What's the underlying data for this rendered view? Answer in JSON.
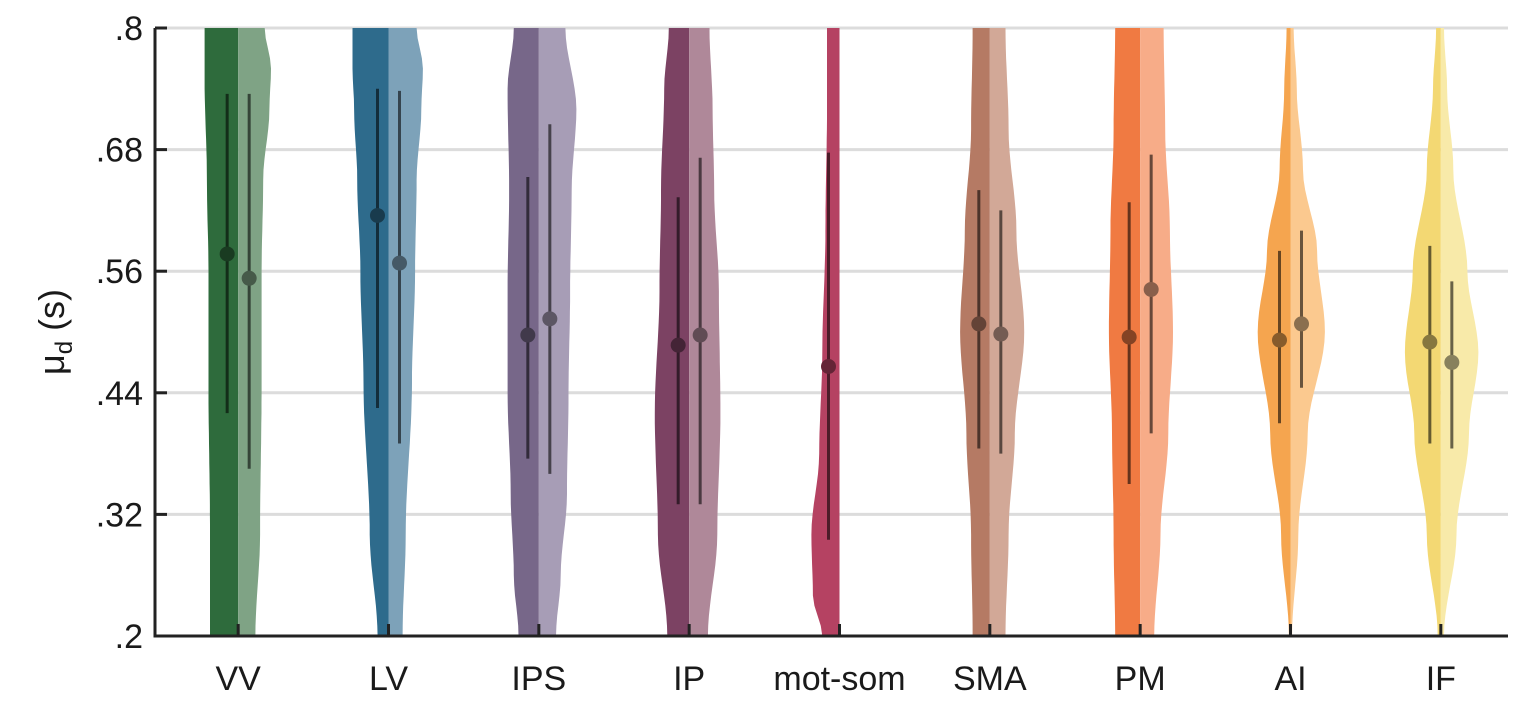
{
  "chart_data": {
    "type": "violin",
    "ylabel": "μ",
    "ylabel_sub": "d",
    "ylabel_unit": " (s)",
    "ylim": [
      0.2,
      0.8
    ],
    "yticks": [
      0.2,
      0.32,
      0.44,
      0.56,
      0.68,
      0.8
    ],
    "ytick_labels": [
      ".2",
      ".32",
      ".44",
      ".56",
      ".68",
      ".8"
    ],
    "grid": true,
    "categories": [
      "VV",
      "LV",
      "IPS",
      "IP",
      "mot-som",
      "SMA",
      "PM",
      "AI",
      "IF"
    ],
    "groups": [
      {
        "label": "VV",
        "left": {
          "color": "#2e6b3c",
          "median": 0.577,
          "low": 0.42,
          "high": 0.735,
          "violin": [
            [
              0.2,
              0.36
            ],
            [
              0.3,
              0.36
            ],
            [
              0.45,
              0.38
            ],
            [
              0.56,
              0.38
            ],
            [
              0.65,
              0.4
            ],
            [
              0.75,
              0.43
            ],
            [
              0.8,
              0.43
            ]
          ]
        },
        "right": {
          "color": "#7fa385",
          "median": 0.553,
          "low": 0.365,
          "high": 0.735,
          "violin": [
            [
              0.2,
              0.22
            ],
            [
              0.3,
              0.28
            ],
            [
              0.45,
              0.3
            ],
            [
              0.56,
              0.3
            ],
            [
              0.65,
              0.32
            ],
            [
              0.72,
              0.4
            ],
            [
              0.76,
              0.42
            ],
            [
              0.8,
              0.34
            ]
          ]
        }
      },
      {
        "label": "LV",
        "left": {
          "color": "#2e6b8c",
          "median": 0.615,
          "low": 0.425,
          "high": 0.74,
          "violin": [
            [
              0.2,
              0.14
            ],
            [
              0.3,
              0.24
            ],
            [
              0.45,
              0.32
            ],
            [
              0.56,
              0.36
            ],
            [
              0.65,
              0.4
            ],
            [
              0.72,
              0.44
            ],
            [
              0.76,
              0.46
            ],
            [
              0.8,
              0.46
            ]
          ]
        },
        "right": {
          "color": "#7da2b9",
          "median": 0.568,
          "low": 0.39,
          "high": 0.738,
          "violin": [
            [
              0.2,
              0.18
            ],
            [
              0.3,
              0.22
            ],
            [
              0.45,
              0.3
            ],
            [
              0.56,
              0.34
            ],
            [
              0.65,
              0.36
            ],
            [
              0.72,
              0.42
            ],
            [
              0.76,
              0.44
            ],
            [
              0.8,
              0.36
            ]
          ]
        }
      },
      {
        "label": "IPS",
        "left": {
          "color": "#776789",
          "median": 0.497,
          "low": 0.375,
          "high": 0.653,
          "violin": [
            [
              0.2,
              0.26
            ],
            [
              0.26,
              0.32
            ],
            [
              0.34,
              0.36
            ],
            [
              0.44,
              0.4
            ],
            [
              0.54,
              0.4
            ],
            [
              0.64,
              0.38
            ],
            [
              0.74,
              0.4
            ],
            [
              0.8,
              0.32
            ]
          ]
        },
        "right": {
          "color": "#a79db6",
          "median": 0.513,
          "low": 0.36,
          "high": 0.705,
          "violin": [
            [
              0.2,
              0.22
            ],
            [
              0.26,
              0.28
            ],
            [
              0.34,
              0.36
            ],
            [
              0.44,
              0.38
            ],
            [
              0.54,
              0.4
            ],
            [
              0.64,
              0.42
            ],
            [
              0.72,
              0.48
            ],
            [
              0.8,
              0.34
            ]
          ]
        }
      },
      {
        "label": "IP",
        "left": {
          "color": "#7c4263",
          "median": 0.487,
          "low": 0.33,
          "high": 0.633,
          "violin": [
            [
              0.2,
              0.28
            ],
            [
              0.3,
              0.4
            ],
            [
              0.42,
              0.44
            ],
            [
              0.54,
              0.38
            ],
            [
              0.64,
              0.36
            ],
            [
              0.74,
              0.32
            ],
            [
              0.8,
              0.26
            ]
          ]
        },
        "right": {
          "color": "#af8899",
          "median": 0.497,
          "low": 0.33,
          "high": 0.672,
          "violin": [
            [
              0.2,
              0.24
            ],
            [
              0.3,
              0.36
            ],
            [
              0.42,
              0.4
            ],
            [
              0.54,
              0.38
            ],
            [
              0.64,
              0.32
            ],
            [
              0.72,
              0.3
            ],
            [
              0.8,
              0.26
            ]
          ]
        }
      },
      {
        "label": "mot-som",
        "left": {
          "color": "#b54262",
          "median": 0.466,
          "low": 0.295,
          "high": 0.677,
          "violin": [
            [
              0.2,
              0.22
            ],
            [
              0.24,
              0.34
            ],
            [
              0.3,
              0.36
            ],
            [
              0.38,
              0.26
            ],
            [
              0.48,
              0.22
            ],
            [
              0.6,
              0.18
            ],
            [
              0.72,
              0.16
            ],
            [
              0.8,
              0.16
            ]
          ]
        },
        "right": null
      },
      {
        "label": "SMA",
        "left": {
          "color": "#b57a64",
          "median": 0.508,
          "low": 0.385,
          "high": 0.64,
          "violin": [
            [
              0.2,
              0.22
            ],
            [
              0.3,
              0.24
            ],
            [
              0.4,
              0.3
            ],
            [
              0.5,
              0.38
            ],
            [
              0.6,
              0.32
            ],
            [
              0.7,
              0.24
            ],
            [
              0.8,
              0.22
            ]
          ]
        },
        "right": {
          "color": "#d2a897",
          "median": 0.498,
          "low": 0.38,
          "high": 0.62,
          "violin": [
            [
              0.2,
              0.2
            ],
            [
              0.3,
              0.24
            ],
            [
              0.4,
              0.32
            ],
            [
              0.5,
              0.44
            ],
            [
              0.6,
              0.34
            ],
            [
              0.7,
              0.24
            ],
            [
              0.8,
              0.2
            ]
          ]
        }
      },
      {
        "label": "PM",
        "left": {
          "color": "#f07a42",
          "median": 0.495,
          "low": 0.35,
          "high": 0.628,
          "violin": [
            [
              0.2,
              0.32
            ],
            [
              0.3,
              0.34
            ],
            [
              0.4,
              0.36
            ],
            [
              0.5,
              0.4
            ],
            [
              0.6,
              0.38
            ],
            [
              0.7,
              0.34
            ],
            [
              0.8,
              0.32
            ]
          ]
        },
        "right": {
          "color": "#f7ac88",
          "median": 0.542,
          "low": 0.4,
          "high": 0.675,
          "violin": [
            [
              0.2,
              0.18
            ],
            [
              0.3,
              0.26
            ],
            [
              0.4,
              0.36
            ],
            [
              0.5,
              0.42
            ],
            [
              0.6,
              0.38
            ],
            [
              0.7,
              0.32
            ],
            [
              0.8,
              0.3
            ]
          ]
        }
      },
      {
        "label": "AI",
        "left": {
          "color": "#f5a54f",
          "median": 0.492,
          "low": 0.41,
          "high": 0.58,
          "violin": [
            [
              0.2,
              0.02
            ],
            [
              0.3,
              0.12
            ],
            [
              0.4,
              0.26
            ],
            [
              0.5,
              0.42
            ],
            [
              0.58,
              0.3
            ],
            [
              0.66,
              0.14
            ],
            [
              0.74,
              0.08
            ],
            [
              0.8,
              0.05
            ]
          ]
        },
        "right": {
          "color": "#fbc98f",
          "median": 0.508,
          "low": 0.445,
          "high": 0.6,
          "violin": [
            [
              0.2,
              0.02
            ],
            [
              0.3,
              0.1
            ],
            [
              0.4,
              0.22
            ],
            [
              0.5,
              0.44
            ],
            [
              0.58,
              0.34
            ],
            [
              0.66,
              0.16
            ],
            [
              0.74,
              0.08
            ],
            [
              0.8,
              0.04
            ]
          ]
        }
      },
      {
        "label": "IF",
        "left": {
          "color": "#f3d873",
          "median": 0.49,
          "low": 0.39,
          "high": 0.585,
          "violin": [
            [
              0.2,
              0.04
            ],
            [
              0.3,
              0.18
            ],
            [
              0.4,
              0.34
            ],
            [
              0.48,
              0.46
            ],
            [
              0.56,
              0.36
            ],
            [
              0.66,
              0.18
            ],
            [
              0.74,
              0.1
            ],
            [
              0.8,
              0.06
            ]
          ]
        },
        "right": {
          "color": "#f8eaa9",
          "median": 0.47,
          "low": 0.385,
          "high": 0.55,
          "violin": [
            [
              0.2,
              0.04
            ],
            [
              0.3,
              0.2
            ],
            [
              0.4,
              0.36
            ],
            [
              0.48,
              0.48
            ],
            [
              0.56,
              0.34
            ],
            [
              0.66,
              0.16
            ],
            [
              0.74,
              0.08
            ],
            [
              0.8,
              0.04
            ]
          ]
        }
      }
    ]
  }
}
